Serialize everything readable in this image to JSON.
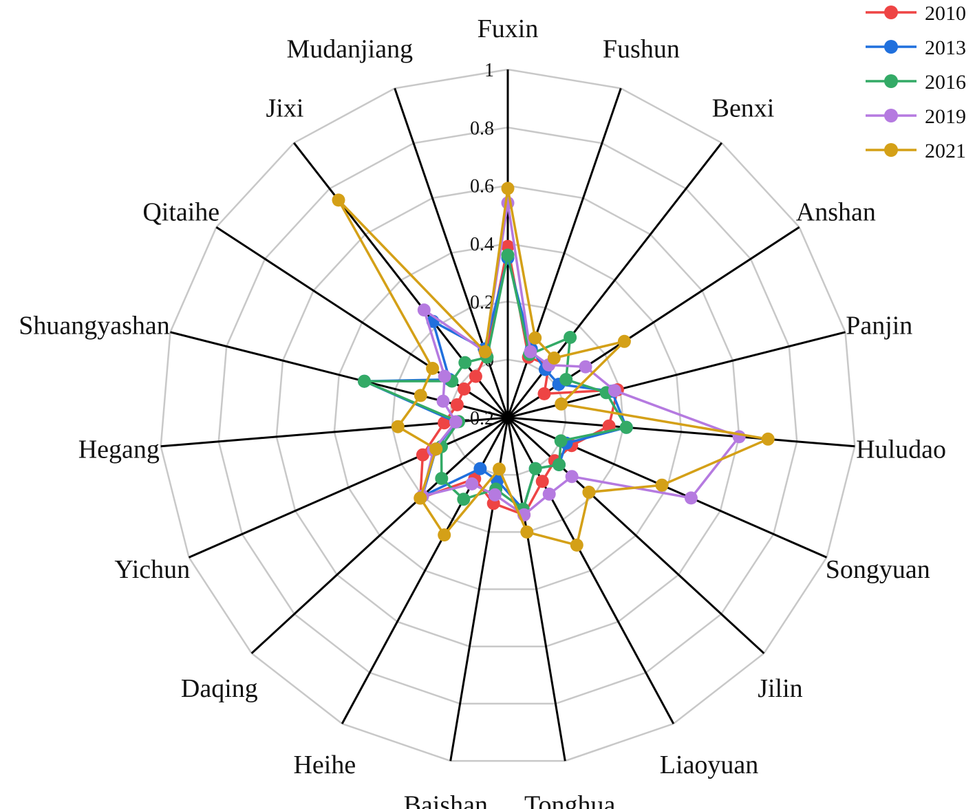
{
  "chart_data": {
    "type": "radar",
    "title": "",
    "categories": [
      "Fuxin",
      "Fushun",
      "Benxi",
      "Anshan",
      "Panjin",
      "Huludao",
      "Songyuan",
      "Jilin",
      "Liaoyuan",
      "Tonghua",
      "Baishan",
      "Heihe",
      "Daqing",
      "Yichun",
      "Hegang",
      "Shuangyashan",
      "Qitaihe",
      "Jixi",
      "Mudanjiang"
    ],
    "radial_axis": {
      "range": [
        -0.2,
        1
      ],
      "tick_labels": [
        "-0.2",
        "0",
        "0.2",
        "0.4",
        "0.6",
        "0.8",
        "1"
      ],
      "tick_values": [
        -0.2,
        0,
        0.2,
        0.4,
        0.6,
        0.8,
        1
      ]
    },
    "grid": true,
    "legend_position": "top-right",
    "series": [
      {
        "name": "2010",
        "color": "#ee4444",
        "values": [
          0.39,
          0.02,
          0.03,
          -0.05,
          0.19,
          0.15,
          0.04,
          0.02,
          0.05,
          0.14,
          0.1,
          0.04,
          0.21,
          0.12,
          0.02,
          -0.02,
          -0.02,
          -0.02,
          0.03
        ]
      },
      {
        "name": "2013",
        "color": "#2070dd",
        "values": [
          0.35,
          0.05,
          0.01,
          0.01,
          0.17,
          0.21,
          0.02,
          0.04,
          0.0,
          0.12,
          0.02,
          0.0,
          0.2,
          0.07,
          -0.02,
          0.31,
          0.04,
          0.22,
          0.05
        ]
      },
      {
        "name": "2016",
        "color": "#33aa66",
        "values": [
          0.36,
          0.03,
          0.15,
          0.04,
          0.15,
          0.21,
          0.0,
          0.04,
          0.0,
          0.12,
          0.05,
          0.12,
          0.11,
          0.05,
          -0.03,
          0.31,
          0.03,
          0.04,
          0.02
        ]
      },
      {
        "name": "2019",
        "color": "#b57ae0",
        "values": [
          0.54,
          0.04,
          0.03,
          0.12,
          0.18,
          0.6,
          0.49,
          0.1,
          0.1,
          0.14,
          0.07,
          0.06,
          0.2,
          0.08,
          -0.02,
          0.03,
          0.06,
          0.27,
          0.04
        ]
      },
      {
        "name": "2021",
        "color": "#d4a017",
        "values": [
          0.59,
          0.09,
          0.06,
          0.28,
          -0.01,
          0.7,
          0.38,
          0.18,
          0.3,
          0.2,
          -0.02,
          0.26,
          0.21,
          0.07,
          0.18,
          0.11,
          0.11,
          0.75,
          0.04
        ]
      }
    ]
  }
}
